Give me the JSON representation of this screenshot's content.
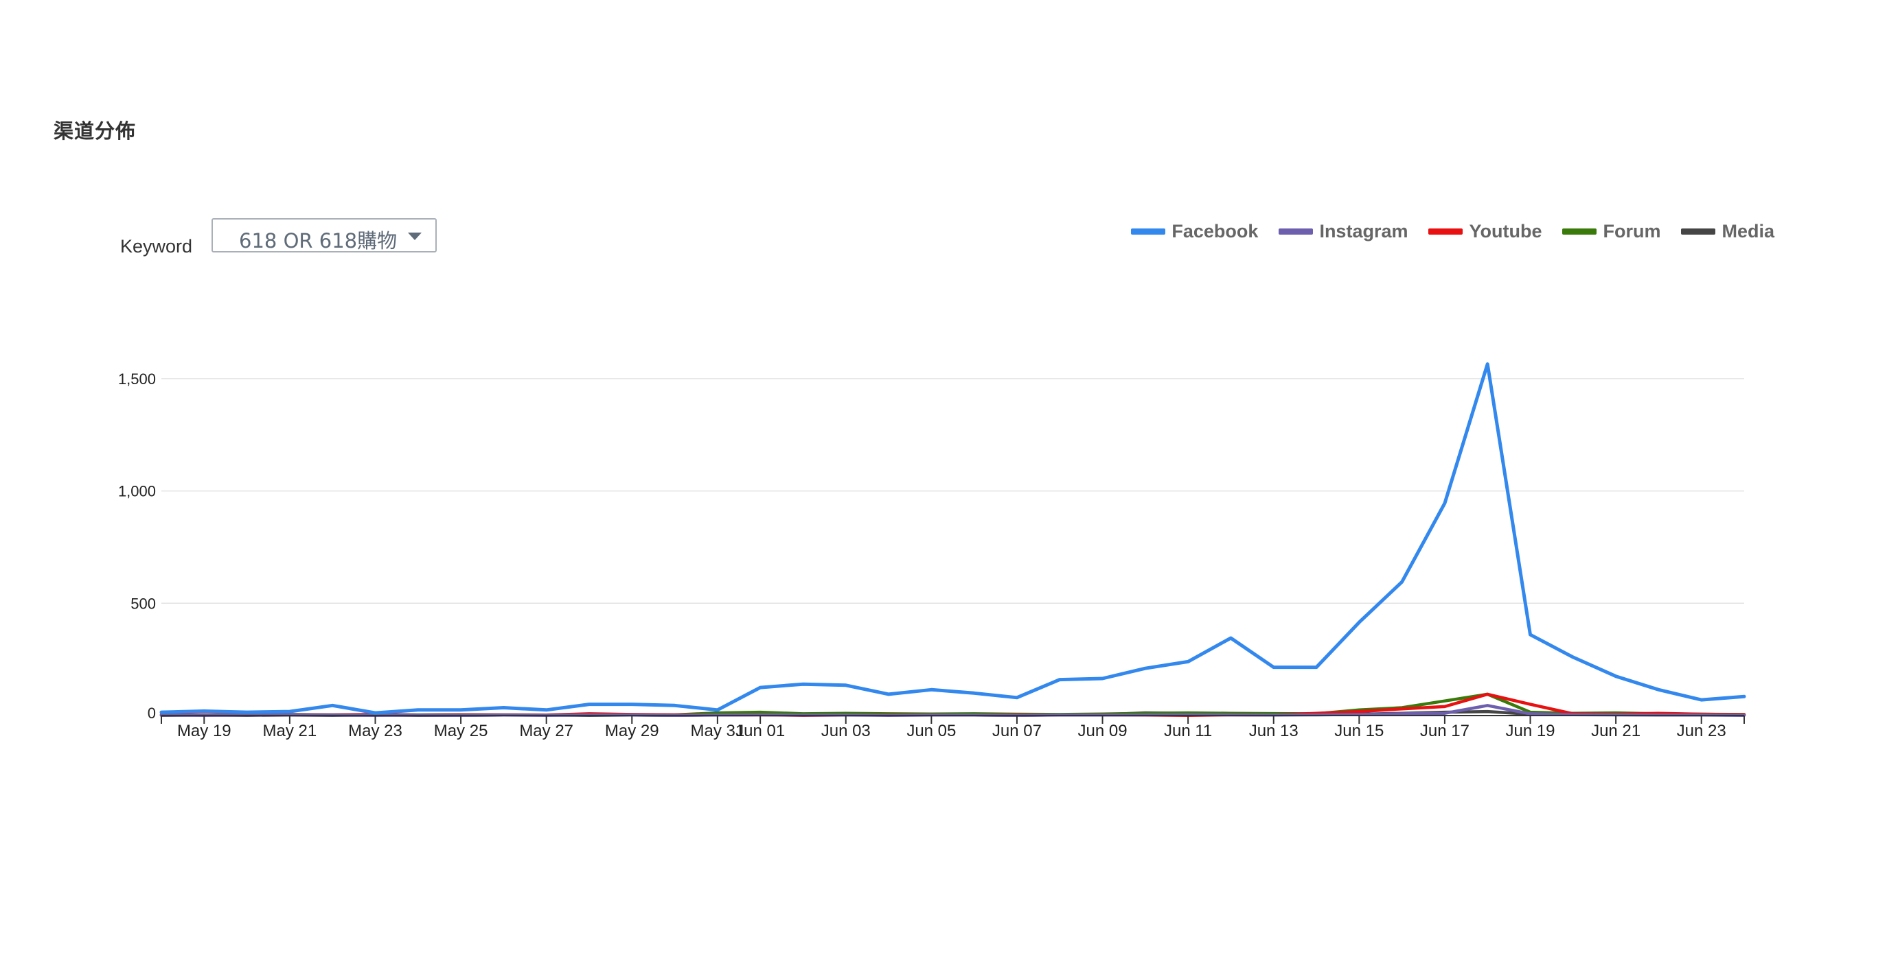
{
  "page": {
    "title": "渠道分佈"
  },
  "controls": {
    "keyword_label": "Keyword",
    "keyword_value": "618 OR 618購物"
  },
  "chart_data": {
    "type": "line",
    "title": "",
    "xlabel": "",
    "ylabel": "",
    "ylim": [
      0,
      1750
    ],
    "yticks": [
      0,
      500,
      1000,
      1500
    ],
    "ytick_labels": [
      "0",
      "500",
      "1,000",
      "1,500"
    ],
    "grid": true,
    "legend_position": "top-right",
    "x": [
      "May 18",
      "May 19",
      "May 20",
      "May 21",
      "May 22",
      "May 23",
      "May 24",
      "May 25",
      "May 26",
      "May 27",
      "May 28",
      "May 29",
      "May 30",
      "May 31",
      "Jun 01",
      "Jun 02",
      "Jun 03",
      "Jun 04",
      "Jun 05",
      "Jun 06",
      "Jun 07",
      "Jun 08",
      "Jun 09",
      "Jun 10",
      "Jun 11",
      "Jun 12",
      "Jun 13",
      "Jun 14",
      "Jun 15",
      "Jun 16",
      "Jun 17",
      "Jun 18",
      "Jun 19",
      "Jun 20",
      "Jun 21",
      "Jun 22",
      "Jun 23",
      "Jun 24"
    ],
    "xtick_labels": [
      {
        "index": 1,
        "label": "May 19"
      },
      {
        "index": 3,
        "label": "May 21"
      },
      {
        "index": 5,
        "label": "May 23"
      },
      {
        "index": 7,
        "label": "May 25"
      },
      {
        "index": 9,
        "label": "May 27"
      },
      {
        "index": 11,
        "label": "May 29"
      },
      {
        "index": 13,
        "label": "May 31"
      },
      {
        "index": 14,
        "label": "Jun 01"
      },
      {
        "index": 16,
        "label": "Jun 03"
      },
      {
        "index": 18,
        "label": "Jun 05"
      },
      {
        "index": 20,
        "label": "Jun 07"
      },
      {
        "index": 22,
        "label": "Jun 09"
      },
      {
        "index": 24,
        "label": "Jun 11"
      },
      {
        "index": 26,
        "label": "Jun 13"
      },
      {
        "index": 28,
        "label": "Jun 15"
      },
      {
        "index": 30,
        "label": "Jun 17"
      },
      {
        "index": 32,
        "label": "Jun 19"
      },
      {
        "index": 34,
        "label": "Jun 21"
      },
      {
        "index": 36,
        "label": "Jun 23"
      }
    ],
    "series": [
      {
        "name": "Facebook",
        "color": "#3388ee",
        "values": [
          15,
          20,
          15,
          18,
          45,
          12,
          25,
          25,
          35,
          25,
          50,
          50,
          45,
          25,
          125,
          140,
          135,
          95,
          115,
          100,
          80,
          160,
          165,
          210,
          240,
          345,
          215,
          215,
          415,
          595,
          945,
          1565,
          360,
          260,
          175,
          115,
          70,
          85
        ]
      },
      {
        "name": "Instagram",
        "color": "#6d5fae",
        "values": [
          2,
          1,
          2,
          3,
          2,
          1,
          2,
          1,
          2,
          1,
          3,
          2,
          1,
          2,
          3,
          2,
          2,
          1,
          2,
          2,
          1,
          2,
          2,
          3,
          4,
          3,
          2,
          3,
          5,
          8,
          10,
          45,
          8,
          4,
          3,
          2,
          2,
          1
        ]
      },
      {
        "name": "Youtube",
        "color": "#e81010",
        "values": [
          5,
          3,
          2,
          4,
          3,
          5,
          2,
          3,
          3,
          2,
          8,
          5,
          3,
          2,
          3,
          1,
          2,
          2,
          3,
          2,
          3,
          2,
          3,
          2,
          1,
          3,
          2,
          10,
          18,
          30,
          40,
          95,
          50,
          8,
          6,
          10,
          6,
          4
        ]
      },
      {
        "name": "Forum",
        "color": "#3a7a0a",
        "values": [
          2,
          3,
          4,
          5,
          3,
          4,
          3,
          4,
          3,
          2,
          5,
          4,
          3,
          12,
          15,
          8,
          10,
          8,
          7,
          8,
          6,
          5,
          7,
          10,
          12,
          10,
          9,
          8,
          25,
          35,
          65,
          95,
          15,
          10,
          12,
          8,
          6,
          5
        ]
      },
      {
        "name": "Media",
        "color": "#454545",
        "values": [
          1,
          2,
          1,
          2,
          1,
          2,
          1,
          1,
          2,
          2,
          1,
          2,
          1,
          3,
          4,
          2,
          3,
          3,
          2,
          2,
          1,
          3,
          4,
          12,
          10,
          8,
          6,
          5,
          6,
          10,
          15,
          18,
          6,
          5,
          4,
          4,
          3,
          2
        ]
      }
    ]
  }
}
